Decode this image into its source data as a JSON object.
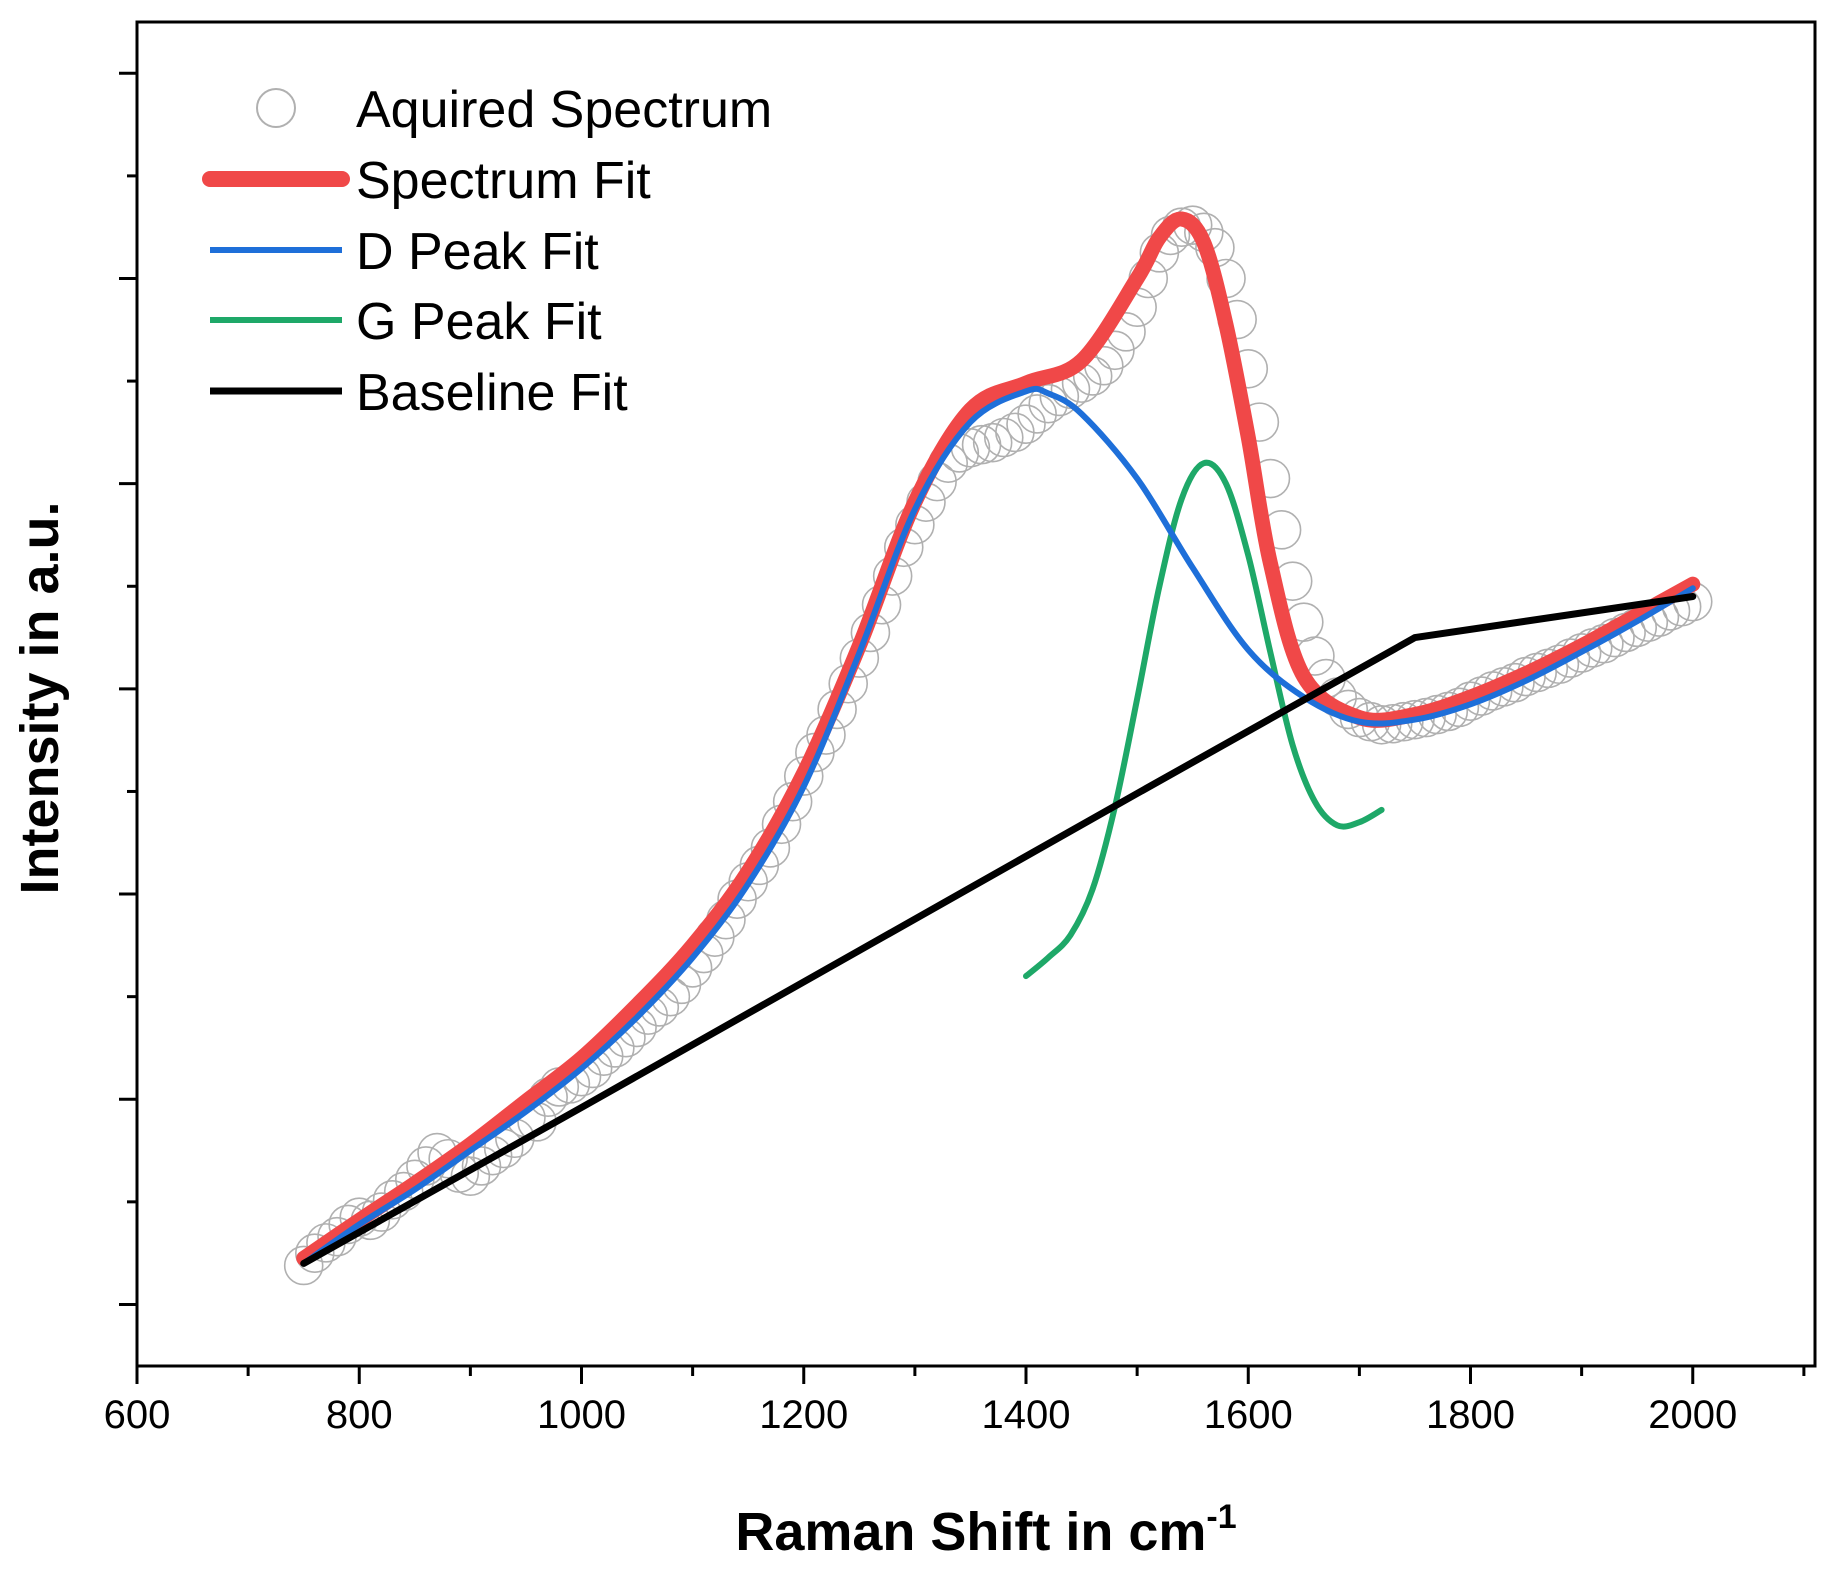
{
  "chart_data": {
    "type": "line",
    "xlabel": "Raman Shift in cm",
    "xlabel_superscript": "-1",
    "ylabel": "Intensity in a.u.",
    "xlim": [
      600,
      2110
    ],
    "ylim": [
      -0.6,
      12.5
    ],
    "x_ticks": [
      600,
      800,
      1000,
      1200,
      1400,
      1600,
      1800,
      2000
    ],
    "y_ticks_labeled": false,
    "legend_position": "top-left",
    "colors": {
      "acquired": "#b0b0b0",
      "spectrum_fit": "#f04848",
      "d_peak": "#1e6fd9",
      "g_peak": "#1ea868",
      "baseline": "#000000"
    },
    "series": [
      {
        "name": "Aquired Spectrum",
        "style": "open-circles",
        "x": [
          750,
          760,
          770,
          780,
          790,
          800,
          810,
          820,
          830,
          840,
          850,
          860,
          870,
          880,
          890,
          900,
          910,
          920,
          930,
          940,
          950,
          960,
          970,
          980,
          990,
          1000,
          1010,
          1020,
          1030,
          1040,
          1050,
          1060,
          1070,
          1080,
          1090,
          1100,
          1110,
          1120,
          1130,
          1140,
          1150,
          1160,
          1170,
          1180,
          1190,
          1200,
          1210,
          1220,
          1230,
          1240,
          1250,
          1260,
          1270,
          1280,
          1290,
          1300,
          1310,
          1320,
          1330,
          1340,
          1350,
          1360,
          1370,
          1380,
          1390,
          1400,
          1410,
          1420,
          1430,
          1440,
          1450,
          1460,
          1470,
          1480,
          1490,
          1500,
          1510,
          1520,
          1530,
          1540,
          1550,
          1560,
          1570,
          1580,
          1590,
          1600,
          1610,
          1620,
          1630,
          1640,
          1650,
          1660,
          1670,
          1680,
          1690,
          1700,
          1710,
          1720,
          1730,
          1740,
          1750,
          1760,
          1770,
          1780,
          1790,
          1800,
          1810,
          1820,
          1830,
          1840,
          1850,
          1860,
          1870,
          1880,
          1890,
          1900,
          1910,
          1920,
          1930,
          1940,
          1950,
          1960,
          1970,
          1980,
          1990,
          2000
        ],
        "y": [
          0.38,
          0.5,
          0.6,
          0.66,
          0.78,
          0.85,
          0.82,
          0.9,
          1.02,
          1.1,
          1.22,
          1.35,
          1.48,
          1.42,
          1.28,
          1.25,
          1.35,
          1.45,
          1.52,
          1.62,
          1.82,
          1.78,
          2.02,
          2.12,
          2.15,
          2.22,
          2.3,
          2.42,
          2.5,
          2.6,
          2.7,
          2.82,
          2.9,
          3.0,
          3.12,
          3.28,
          3.42,
          3.58,
          3.75,
          3.95,
          4.12,
          4.28,
          4.45,
          4.68,
          4.9,
          5.15,
          5.38,
          5.55,
          5.8,
          6.05,
          6.3,
          6.55,
          6.82,
          7.1,
          7.38,
          7.6,
          7.82,
          8.02,
          8.2,
          8.3,
          8.35,
          8.38,
          8.4,
          8.45,
          8.5,
          8.58,
          8.68,
          8.78,
          8.85,
          8.92,
          8.98,
          9.05,
          9.15,
          9.3,
          9.48,
          9.72,
          10.0,
          10.25,
          10.42,
          10.5,
          10.52,
          10.45,
          10.3,
          10.0,
          9.6,
          9.12,
          8.6,
          8.05,
          7.55,
          7.05,
          6.65,
          6.32,
          6.1,
          5.92,
          5.8,
          5.72,
          5.68,
          5.65,
          5.66,
          5.68,
          5.7,
          5.72,
          5.75,
          5.78,
          5.82,
          5.88,
          5.93,
          5.98,
          6.02,
          6.06,
          6.12,
          6.16,
          6.2,
          6.24,
          6.3,
          6.35,
          6.4,
          6.44,
          6.5,
          6.55,
          6.6,
          6.65,
          6.7,
          6.76,
          6.8,
          6.85
        ]
      },
      {
        "name": "Spectrum Fit",
        "style": "line",
        "x": [
          750,
          800,
          850,
          900,
          950,
          1000,
          1050,
          1100,
          1150,
          1200,
          1250,
          1300,
          1350,
          1400,
          1450,
          1500,
          1520,
          1540,
          1560,
          1580,
          1600,
          1620,
          1650,
          1700,
          1750,
          1800,
          1850,
          1900,
          1950,
          2000
        ],
        "y": [
          0.45,
          0.82,
          1.18,
          1.56,
          1.98,
          2.4,
          2.92,
          3.5,
          4.22,
          5.18,
          6.42,
          7.82,
          8.72,
          8.98,
          9.2,
          10.0,
          10.4,
          10.58,
          10.35,
          9.55,
          8.45,
          7.22,
          6.12,
          5.72,
          5.75,
          5.92,
          6.15,
          6.42,
          6.72,
          7.02
        ]
      },
      {
        "name": "D Peak Fit",
        "style": "line",
        "x": [
          750,
          800,
          850,
          900,
          950,
          1000,
          1050,
          1100,
          1150,
          1200,
          1250,
          1300,
          1350,
          1400,
          1420,
          1450,
          1500,
          1550,
          1600,
          1650,
          1700,
          1750,
          1800,
          1850,
          1900,
          1950,
          2000
        ],
        "y": [
          0.4,
          0.78,
          1.12,
          1.5,
          1.88,
          2.3,
          2.8,
          3.38,
          4.1,
          5.05,
          6.35,
          7.75,
          8.6,
          8.9,
          8.88,
          8.68,
          8.05,
          7.18,
          6.38,
          5.92,
          5.68,
          5.7,
          5.85,
          6.08,
          6.36,
          6.66,
          6.98
        ]
      },
      {
        "name": "G Peak Fit",
        "style": "line",
        "x": [
          1400,
          1420,
          1440,
          1460,
          1480,
          1500,
          1520,
          1540,
          1560,
          1580,
          1600,
          1620,
          1640,
          1660,
          1680,
          1700,
          1720
        ],
        "y": [
          3.2,
          3.38,
          3.6,
          4.05,
          4.85,
          5.9,
          7.0,
          7.85,
          8.2,
          8.0,
          7.3,
          6.35,
          5.45,
          4.9,
          4.67,
          4.7,
          4.82
        ]
      },
      {
        "name": "Baseline Fit",
        "style": "line",
        "x": [
          750,
          1000,
          1250,
          1500,
          1750,
          2000
        ],
        "y": [
          0.4,
          1.92,
          3.45,
          4.98,
          6.5,
          6.9
        ]
      }
    ]
  }
}
